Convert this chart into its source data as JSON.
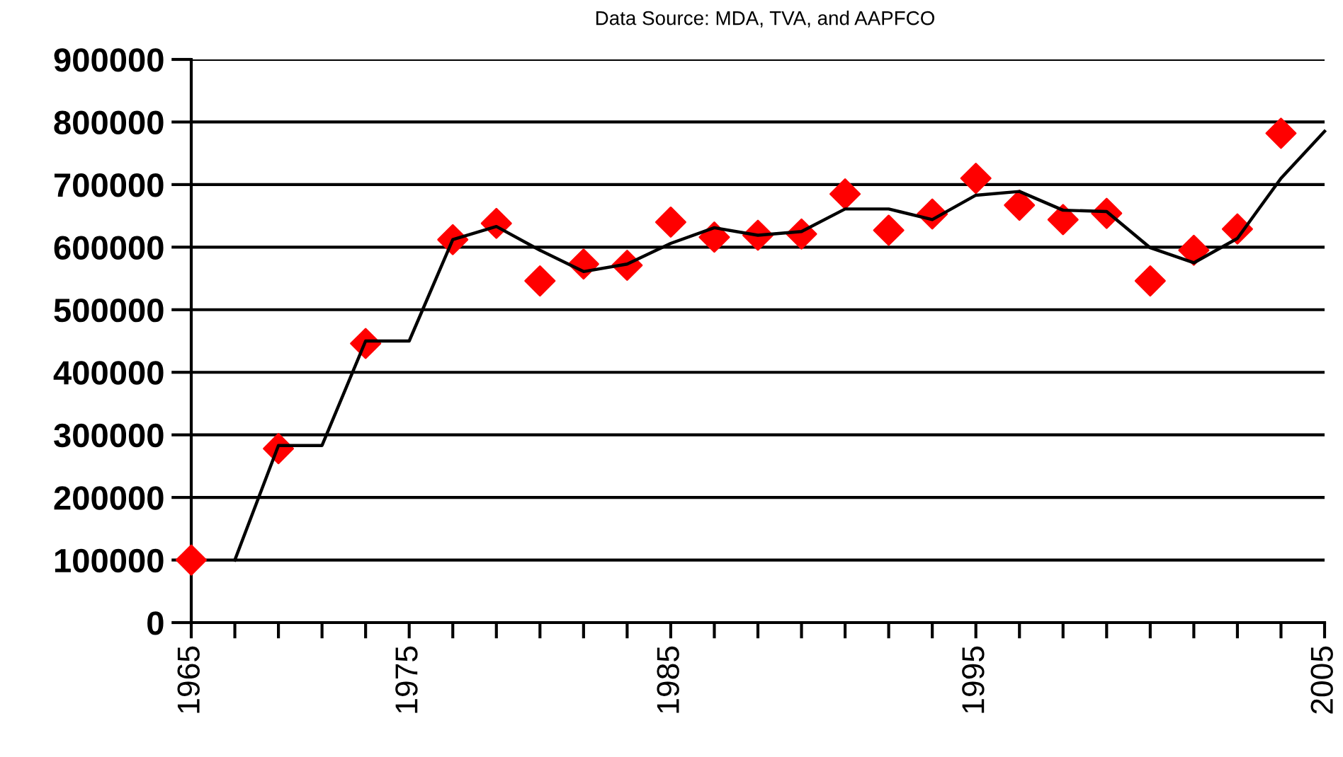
{
  "chart_data": {
    "type": "line",
    "annotations": [
      "Data Source: MDA, TVA, and AAPFCO"
    ],
    "categories": [
      "1965",
      null,
      null,
      null,
      null,
      "1975",
      null,
      null,
      null,
      null,
      null,
      "1985",
      null,
      null,
      null,
      null,
      null,
      null,
      "1995",
      null,
      null,
      null,
      null,
      null,
      null,
      null,
      "2005"
    ],
    "series": [
      {
        "type": "scatter",
        "color": "#ff0000",
        "marker": "diamond",
        "values": [
          100000,
          null,
          278000,
          null,
          446000,
          null,
          612000,
          638000,
          546000,
          573000,
          571000,
          640000,
          616000,
          619000,
          621000,
          685000,
          627000,
          653000,
          710000,
          667000,
          644000,
          654000,
          546000,
          595000,
          629000,
          782000,
          null
        ]
      },
      {
        "color": "#000000",
        "marker": "none",
        "line_style": "solid",
        "values": [
          null,
          100000,
          283000,
          283000,
          450000,
          450000,
          612000,
          633000,
          595000,
          561000,
          573000,
          606000,
          631000,
          619000,
          625000,
          661000,
          661000,
          644000,
          683000,
          689000,
          659000,
          657000,
          599000,
          575000,
          614000,
          710000,
          785000
        ]
      }
    ],
    "ylim": [
      0,
      900000
    ],
    "yticks": [
      0,
      100000,
      200000,
      300000,
      400000,
      500000,
      600000,
      700000,
      800000,
      900000
    ],
    "grid": "y"
  }
}
